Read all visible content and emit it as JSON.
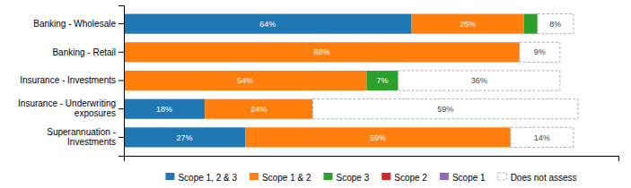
{
  "chart_data": {
    "type": "bar",
    "orientation": "horizontal",
    "stacked": true,
    "data_labels": true,
    "grid": false,
    "legend": "bottom",
    "tick_labels": "y",
    "categories": [
      "Banking - Wholesale",
      "Banking - Retail",
      "Insurance - Investments",
      "Insurance - Underwriting\nexposures",
      "Superannuation -\nInvestments"
    ],
    "xlim": [
      0,
      110
    ],
    "xticks": [],
    "series": [
      {
        "name": "Scope 1, 2 & 3",
        "values": [
          64,
          0,
          0,
          18,
          27
        ],
        "value_labels": [
          "64%",
          null,
          null,
          "18%",
          "27%"
        ]
      },
      {
        "name": "Scope 1 & 2",
        "values": [
          25,
          88,
          54,
          24,
          59
        ],
        "value_labels": [
          "25%",
          "88%",
          "54%",
          "24%",
          "59%"
        ]
      },
      {
        "name": "Scope 3",
        "values": [
          3,
          0,
          7,
          0,
          0
        ],
        "value_labels": [
          null,
          null,
          "7%",
          null,
          null
        ]
      },
      {
        "name": "Scope 2",
        "values": [
          0,
          0,
          0,
          0,
          0
        ]
      },
      {
        "name": "Scope 1",
        "values": [
          0,
          0,
          0,
          0,
          0
        ]
      },
      {
        "name": "Does not assess",
        "color": "#ffffff",
        "values": [
          8,
          9,
          36,
          59,
          14
        ],
        "value_labels": [
          "8%",
          "9%",
          "36%",
          "59%",
          "14%"
        ]
      }
    ]
  }
}
